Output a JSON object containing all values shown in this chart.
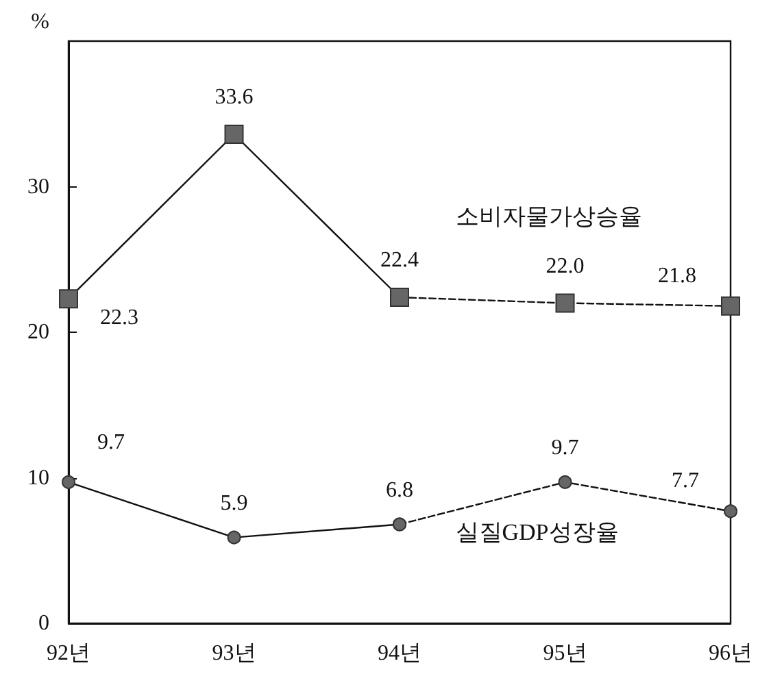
{
  "chart_data": {
    "type": "line",
    "ylabel": "%",
    "categories": [
      "92년",
      "93년",
      "94년",
      "95년",
      "96년"
    ],
    "series": [
      {
        "name": "소비자물가상승율",
        "color": "#666666",
        "marker": "square",
        "line_style": "solid",
        "values": [
          22.3,
          33.6,
          22.4,
          null,
          null
        ],
        "value_labels": [
          "22.3",
          "33.6",
          "22.4",
          null,
          null
        ]
      },
      {
        "color": "#666666",
        "marker": "square",
        "line_style": "dashed",
        "values": [
          null,
          null,
          22.4,
          22.0,
          21.8
        ],
        "value_labels": [
          null,
          null,
          null,
          "22.0",
          "21.8"
        ]
      },
      {
        "name": "실질GDP성장율",
        "color": "#666666",
        "marker": "circle",
        "line_style": "solid",
        "values": [
          9.7,
          5.9,
          6.8,
          null,
          null
        ],
        "value_labels": [
          "9.7",
          "5.9",
          "6.8",
          null,
          null
        ]
      },
      {
        "color": "#666666",
        "marker": "circle",
        "line_style": "dashed",
        "values": [
          null,
          null,
          6.8,
          9.7,
          7.7
        ],
        "value_labels": [
          null,
          null,
          null,
          "9.7",
          "7.7"
        ]
      }
    ],
    "ylim": [
      0,
      40
    ],
    "yticks": [
      0,
      10,
      20,
      30
    ],
    "grid": false,
    "legend": false
  }
}
